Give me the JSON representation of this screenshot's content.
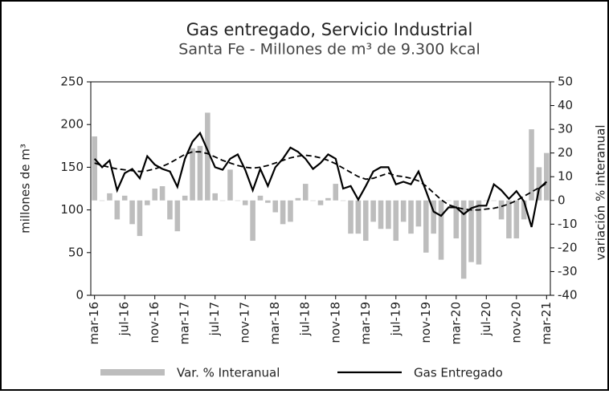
{
  "chart_data": {
    "type": "bar_line",
    "title": "Gas entregado, Servicio Industrial",
    "subtitle": "Santa Fe - Millones de m³ de 9.300 kcal",
    "y_label": "millones de m³",
    "y2_label": "variación % interanual",
    "categories": [
      "mar-16",
      null,
      null,
      null,
      "jul-16",
      null,
      null,
      null,
      "nov-16",
      null,
      null,
      null,
      "mar-17",
      null,
      null,
      null,
      "jul-17",
      null,
      null,
      null,
      "nov-17",
      null,
      null,
      null,
      "mar-18",
      null,
      null,
      null,
      "jul-18",
      null,
      null,
      null,
      "nov-18",
      null,
      null,
      null,
      "mar-19",
      null,
      null,
      null,
      "jul-19",
      null,
      null,
      null,
      "nov-19",
      null,
      null,
      null,
      "mar-20",
      null,
      null,
      null,
      "jul-20",
      null,
      null,
      null,
      "nov-20",
      null,
      null,
      null,
      "mar-21"
    ],
    "series": [
      {
        "name": "Var. % Interanual",
        "type": "bar",
        "axis": "y2",
        "color": "#bdbdbd",
        "values": [
          27,
          0,
          3,
          -8,
          2,
          -10,
          -15,
          -2,
          5,
          6,
          -8,
          -13,
          2,
          22,
          23,
          37,
          3,
          0,
          13,
          0,
          -2,
          -17,
          2,
          -1,
          -5,
          -10,
          -9,
          1,
          7,
          0,
          -2,
          1,
          7,
          0,
          -14,
          -14,
          -17,
          -9,
          -12,
          -12,
          -17,
          -9,
          -14,
          -11,
          -22,
          -14,
          -25,
          0,
          -16,
          -33,
          -26,
          -27,
          0,
          0,
          -8,
          -16,
          -16,
          -8,
          30,
          14,
          20
        ]
      },
      {
        "name": "Gas Entregado",
        "type": "line",
        "axis": "y",
        "color": "#000000",
        "values": [
          160,
          150,
          158,
          123,
          143,
          148,
          137,
          163,
          153,
          148,
          145,
          127,
          160,
          180,
          190,
          170,
          150,
          147,
          160,
          165,
          147,
          123,
          148,
          128,
          150,
          160,
          173,
          168,
          160,
          148,
          155,
          165,
          160,
          125,
          128,
          112,
          128,
          145,
          150,
          150,
          130,
          133,
          130,
          145,
          122,
          98,
          93,
          103,
          103,
          95,
          102,
          105,
          105,
          130,
          123,
          113,
          122,
          110,
          80,
          125,
          133
        ]
      },
      {
        "type": "dashed",
        "axis": "y",
        "color": "#000000",
        "values": [
          155,
          152,
          150,
          148,
          147,
          146,
          145,
          146,
          148,
          151,
          155,
          160,
          165,
          168,
          168,
          166,
          162,
          158,
          155,
          152,
          150,
          149,
          150,
          152,
          155,
          158,
          161,
          163,
          164,
          163,
          161,
          158,
          154,
          149,
          144,
          139,
          136,
          137,
          140,
          143,
          140,
          139,
          137,
          134,
          128,
          120,
          112,
          106,
          103,
          101,
          100,
          100,
          101,
          102,
          104,
          107,
          111,
          116,
          121,
          126,
          131
        ]
      }
    ],
    "ylim": [
      0,
      250
    ],
    "yticks": [
      0,
      50,
      100,
      150,
      200,
      250
    ],
    "y2lim": [
      -40,
      50
    ],
    "y2ticks": [
      -40,
      -30,
      -20,
      -10,
      0,
      10,
      20,
      30,
      40,
      50
    ]
  }
}
